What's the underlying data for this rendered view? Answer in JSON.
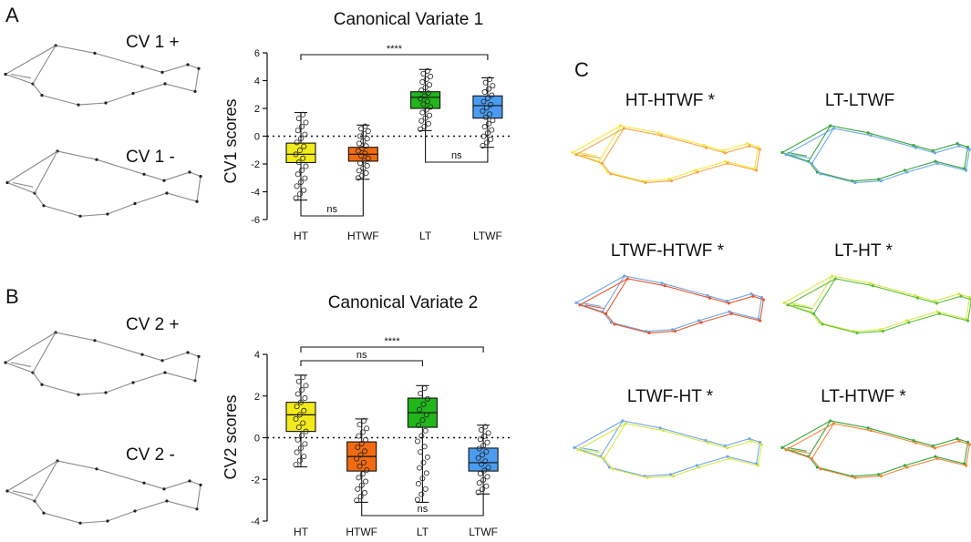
{
  "panels": {
    "a": {
      "letter": "A",
      "cv_plus": "CV 1 +",
      "cv_minus": "CV 1 -"
    },
    "b": {
      "letter": "B",
      "cv_plus": "CV 2 +",
      "cv_minus": "CV 2 -"
    },
    "c": {
      "letter": "C",
      "comparisons": [
        {
          "label": "HT-HTWF *",
          "colors": [
            "#f5e83a",
            "#f2a54a"
          ]
        },
        {
          "label": "LT-LTWF",
          "colors": [
            "#3aa53a",
            "#6fa9e8"
          ]
        },
        {
          "label": "LTWF-HTWF *",
          "colors": [
            "#6fa9e8",
            "#e8552f"
          ]
        },
        {
          "label": "LT-HT *",
          "colors": [
            "#d9e84a",
            "#5cbf3a"
          ]
        },
        {
          "label": "LTWF-HT *",
          "colors": [
            "#6fa9e8",
            "#d9e84a"
          ]
        },
        {
          "label": "LT-HTWF *",
          "colors": [
            "#3aa53a",
            "#f2863a"
          ]
        }
      ]
    }
  },
  "colors": {
    "HT": "#f2ea1a",
    "HTWF": "#f26b11",
    "LT": "#22b61b",
    "LTWF": "#4a9cf0",
    "outline_gray": "#8a8a8a"
  },
  "chart_data": [
    {
      "type": "box",
      "title": "Canonical Variate 1",
      "ylabel": "CV1 scores",
      "xlabel": "",
      "categories": [
        "HT",
        "HTWF",
        "LT",
        "LTWF"
      ],
      "ylim": [
        -6,
        6
      ],
      "yticks": [
        -6,
        -4,
        -2,
        0,
        2,
        4,
        6
      ],
      "ytick_labels": [
        "-6",
        "-4",
        "-2",
        "0",
        "2",
        "4",
        "6"
      ],
      "reference_line": 0,
      "boxes": [
        {
          "category": "HT",
          "min": -4.6,
          "q1": -1.9,
          "median": -1.3,
          "q3": -0.5,
          "max": 1.7
        },
        {
          "category": "HTWF",
          "min": -3.1,
          "q1": -1.8,
          "median": -1.3,
          "q3": -0.8,
          "max": 0.8
        },
        {
          "category": "LT",
          "min": 0.4,
          "q1": 2.0,
          "median": 2.8,
          "q3": 3.2,
          "max": 4.8
        },
        {
          "category": "LTWF",
          "min": -0.8,
          "q1": 1.3,
          "median": 2.2,
          "q3": 2.9,
          "max": 4.2
        }
      ],
      "comparisons": [
        {
          "from": "HT",
          "to": "LTWF",
          "label": "****",
          "side": "top"
        },
        {
          "from": "LT",
          "to": "LTWF",
          "label": "ns",
          "side": "below"
        },
        {
          "from": "HT",
          "to": "HTWF",
          "label": "ns",
          "side": "below"
        }
      ]
    },
    {
      "type": "box",
      "title": "Canonical Variate 2",
      "ylabel": "CV2 scores",
      "xlabel": "",
      "categories": [
        "HT",
        "HTWF",
        "LT",
        "LTWF"
      ],
      "ylim": [
        -4,
        4
      ],
      "yticks": [
        -4,
        -2,
        0,
        2,
        4
      ],
      "ytick_labels": [
        "-4",
        "-2",
        "0",
        "2",
        "4"
      ],
      "reference_line": 0,
      "boxes": [
        {
          "category": "HT",
          "min": -1.4,
          "q1": 0.3,
          "median": 1.1,
          "q3": 1.7,
          "max": 3.0
        },
        {
          "category": "HTWF",
          "min": -3.1,
          "q1": -1.6,
          "median": -0.9,
          "q3": -0.2,
          "max": 0.9
        },
        {
          "category": "LT",
          "min": -3.1,
          "q1": 0.5,
          "median": 1.2,
          "q3": 1.9,
          "max": 2.5
        },
        {
          "category": "LTWF",
          "min": -2.7,
          "q1": -1.6,
          "median": -1.2,
          "q3": -0.5,
          "max": 0.6
        }
      ],
      "comparisons": [
        {
          "from": "HT",
          "to": "LTWF",
          "label": "****",
          "side": "top"
        },
        {
          "from": "HT",
          "to": "LT",
          "label": "ns",
          "side": "top"
        },
        {
          "from": "HTWF",
          "to": "LTWF",
          "label": "ns",
          "side": "below"
        }
      ]
    }
  ]
}
